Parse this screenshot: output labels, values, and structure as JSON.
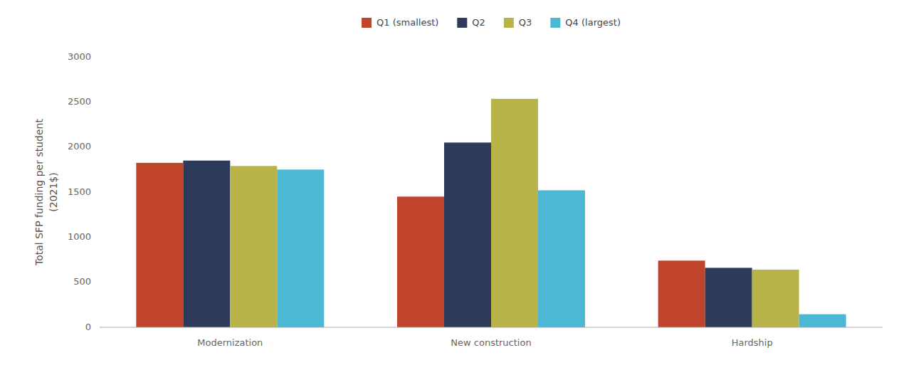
{
  "chart_data": {
    "type": "bar",
    "y_label": "Total SFP funding per student\n(2021$)",
    "categories": [
      "Modernization",
      "New construction",
      "Hardship"
    ],
    "series": [
      {
        "name": "Q1 (smallest)",
        "color": "#C0432B",
        "values": [
          1825,
          1450,
          740
        ]
      },
      {
        "name": "Q2",
        "color": "#2E3A59",
        "values": [
          1850,
          2050,
          660
        ]
      },
      {
        "name": "Q3",
        "color": "#B8B44A",
        "values": [
          1790,
          2535,
          640
        ]
      },
      {
        "name": "Q4 (largest)",
        "color": "#4DB8D4",
        "values": [
          1750,
          1520,
          145
        ]
      }
    ],
    "ylim": [
      0,
      3000
    ],
    "yticks": [
      0,
      500,
      1000,
      1500,
      2000,
      2500,
      3000
    ],
    "grid": false,
    "legend": "top"
  }
}
